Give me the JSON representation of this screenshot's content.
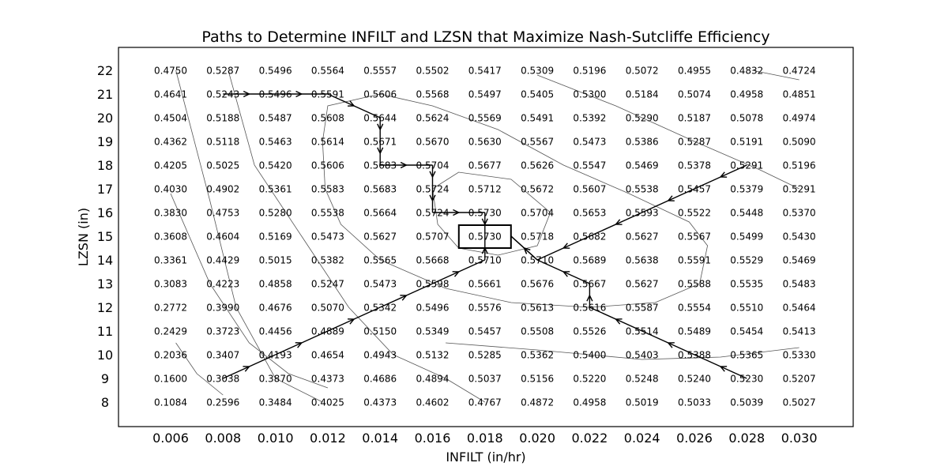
{
  "chart_data": {
    "type": "table",
    "title": "Paths to Determine INFILT and LZSN that Maximize Nash-Sutcliffe Efficiency",
    "xlabel": "INFILT (in/hr)",
    "ylabel": "LZSN (in)",
    "x": [
      "0.006",
      "0.008",
      "0.010",
      "0.012",
      "0.014",
      "0.016",
      "0.018",
      "0.020",
      "0.022",
      "0.024",
      "0.026",
      "0.028",
      "0.030"
    ],
    "y": [
      "22",
      "21",
      "20",
      "19",
      "18",
      "17",
      "16",
      "15",
      "14",
      "13",
      "12",
      "11",
      "10",
      "9",
      "8"
    ],
    "grid": false,
    "values": [
      [
        "0.4750",
        "0.5287",
        "0.5496",
        "0.5564",
        "0.5557",
        "0.5502",
        "0.5417",
        "0.5309",
        "0.5196",
        "0.5072",
        "0.4955",
        "0.4832",
        "0.4724"
      ],
      [
        "0.4641",
        "0.5243",
        "0.5496",
        "0.5591",
        "0.5606",
        "0.5568",
        "0.5497",
        "0.5405",
        "0.5300",
        "0.5184",
        "0.5074",
        "0.4958",
        "0.4851"
      ],
      [
        "0.4504",
        "0.5188",
        "0.5487",
        "0.5608",
        "0.5644",
        "0.5624",
        "0.5569",
        "0.5491",
        "0.5392",
        "0.5290",
        "0.5187",
        "0.5078",
        "0.4974"
      ],
      [
        "0.4362",
        "0.5118",
        "0.5463",
        "0.5614",
        "0.5671",
        "0.5670",
        "0.5630",
        "0.5567",
        "0.5473",
        "0.5386",
        "0.5287",
        "0.5191",
        "0.5090"
      ],
      [
        "0.4205",
        "0.5025",
        "0.5420",
        "0.5606",
        "0.5683",
        "0.5704",
        "0.5677",
        "0.5626",
        "0.5547",
        "0.5469",
        "0.5378",
        "0.5291",
        "0.5196"
      ],
      [
        "0.4030",
        "0.4902",
        "0.5361",
        "0.5583",
        "0.5683",
        "0.5724",
        "0.5712",
        "0.5672",
        "0.5607",
        "0.5538",
        "0.5457",
        "0.5379",
        "0.5291"
      ],
      [
        "0.3830",
        "0.4753",
        "0.5280",
        "0.5538",
        "0.5664",
        "0.5724",
        "0.5730",
        "0.5704",
        "0.5653",
        "0.5593",
        "0.5522",
        "0.5448",
        "0.5370"
      ],
      [
        "0.3608",
        "0.4604",
        "0.5169",
        "0.5473",
        "0.5627",
        "0.5707",
        "0.5730",
        "0.5718",
        "0.5682",
        "0.5627",
        "0.5567",
        "0.5499",
        "0.5430"
      ],
      [
        "0.3361",
        "0.4429",
        "0.5015",
        "0.5382",
        "0.5565",
        "0.5668",
        "0.5710",
        "0.5710",
        "0.5689",
        "0.5638",
        "0.5591",
        "0.5529",
        "0.5469"
      ],
      [
        "0.3083",
        "0.4223",
        "0.4858",
        "0.5247",
        "0.5473",
        "0.5598",
        "0.5661",
        "0.5676",
        "0.5667",
        "0.5627",
        "0.5588",
        "0.5535",
        "0.5483"
      ],
      [
        "0.2772",
        "0.3990",
        "0.4676",
        "0.5070",
        "0.5342",
        "0.5496",
        "0.5576",
        "0.5613",
        "0.5616",
        "0.5587",
        "0.5554",
        "0.5510",
        "0.5464"
      ],
      [
        "0.2429",
        "0.3723",
        "0.4456",
        "0.4889",
        "0.5150",
        "0.5349",
        "0.5457",
        "0.5508",
        "0.5526",
        "0.5514",
        "0.5489",
        "0.5454",
        "0.5413"
      ],
      [
        "0.2036",
        "0.3407",
        "0.4193",
        "0.4654",
        "0.4943",
        "0.5132",
        "0.5285",
        "0.5362",
        "0.5400",
        "0.5403",
        "0.5388",
        "0.5365",
        "0.5330"
      ],
      [
        "0.1600",
        "0.3038",
        "0.3870",
        "0.4373",
        "0.4686",
        "0.4894",
        "0.5037",
        "0.5156",
        "0.5220",
        "0.5248",
        "0.5240",
        "0.5230",
        "0.5207"
      ],
      [
        "0.1084",
        "0.2596",
        "0.3484",
        "0.4025",
        "0.4373",
        "0.4602",
        "0.4767",
        "0.4872",
        "0.4958",
        "0.5019",
        "0.5033",
        "0.5039",
        "0.5027"
      ]
    ],
    "optimum": {
      "x": "0.018",
      "y": "15"
    },
    "paths": [
      [
        [
          0.008,
          9
        ],
        [
          0.01,
          10
        ],
        [
          0.012,
          11
        ],
        [
          0.014,
          12
        ],
        [
          0.016,
          13
        ],
        [
          0.018,
          14
        ],
        [
          0.018,
          15
        ]
      ],
      [
        [
          0.028,
          9
        ],
        [
          0.026,
          10
        ],
        [
          0.024,
          11
        ],
        [
          0.022,
          12
        ],
        [
          0.022,
          13
        ],
        [
          0.02,
          14
        ],
        [
          0.019,
          15
        ]
      ],
      [
        [
          0.028,
          18
        ],
        [
          0.026,
          17
        ],
        [
          0.024,
          16
        ],
        [
          0.022,
          15
        ],
        [
          0.02,
          14
        ],
        [
          0.019,
          15
        ]
      ],
      [
        [
          0.008,
          21
        ],
        [
          0.01,
          21
        ],
        [
          0.012,
          21
        ],
        [
          0.014,
          20
        ],
        [
          0.014,
          19
        ],
        [
          0.014,
          18
        ],
        [
          0.016,
          18
        ],
        [
          0.016,
          17
        ],
        [
          0.016,
          16
        ],
        [
          0.018,
          16
        ],
        [
          0.018,
          15
        ]
      ]
    ]
  }
}
